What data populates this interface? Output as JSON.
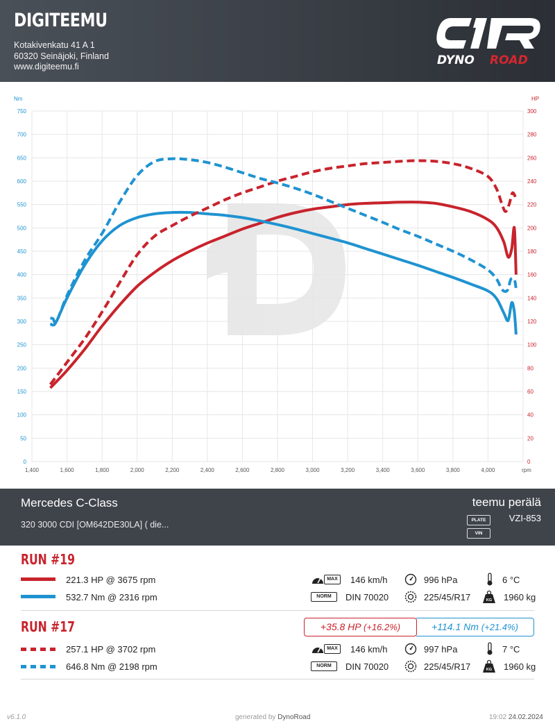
{
  "header": {
    "company": "DIGITEEMU",
    "address_line1": "Kotakivenkatu 41 A 1",
    "address_line2": "60320 Seinäjoki, Finland",
    "website": "www.digiteemu.fi",
    "logo_text_left": "DYNO",
    "logo_text_right": "ROAD"
  },
  "colors": {
    "hp": "#c8232c",
    "nm": "#1f93d1",
    "header_bg": "#3a3f46",
    "car_bar_bg": "#3f444b"
  },
  "chart_data": {
    "type": "line",
    "title": "",
    "xlabel": "rpm",
    "ylabel_left": "Nm",
    "ylabel_right": "HP",
    "xlim": [
      1400,
      4200
    ],
    "ylim_left": [
      0,
      750
    ],
    "ylim_right": [
      0,
      300
    ],
    "x_ticks": [
      1400,
      1600,
      1800,
      2000,
      2200,
      2400,
      2600,
      2800,
      3000,
      3200,
      3400,
      3600,
      3800,
      4000
    ],
    "x_tick_labels": [
      "1,400",
      "1,600",
      "1,800",
      "2,000",
      "2,200",
      "2,400",
      "2,600",
      "2,800",
      "3,000",
      "3,200",
      "3,400",
      "3,600",
      "3,800",
      "4,000"
    ],
    "y_left_ticks": [
      0,
      50,
      100,
      150,
      200,
      250,
      300,
      350,
      400,
      450,
      500,
      550,
      600,
      650,
      700,
      750
    ],
    "y_right_ticks": [
      0,
      20,
      40,
      60,
      80,
      100,
      120,
      140,
      160,
      180,
      200,
      220,
      240,
      260,
      280,
      300
    ],
    "grid": true,
    "series": [
      {
        "name": "RUN #19 HP",
        "axis": "right",
        "color": "#c8232c",
        "dashed": false,
        "x": [
          1505,
          1600,
          1700,
          1800,
          1900,
          2000,
          2100,
          2200,
          2300,
          2400,
          2500,
          2600,
          2700,
          2800,
          2900,
          3000,
          3100,
          3200,
          3300,
          3400,
          3500,
          3600,
          3700,
          3800,
          3900,
          4000,
          4050,
          4090,
          4115,
          4135,
          4150,
          4160
        ],
        "values": [
          63,
          78,
          96,
          116,
          134,
          150,
          162,
          172,
          180,
          187,
          193,
          199,
          204,
          209,
          213,
          216,
          218,
          220,
          221,
          221.5,
          222,
          222,
          221,
          218,
          214,
          207,
          200,
          188,
          175,
          182,
          200,
          160
        ]
      },
      {
        "name": "RUN #19 Nm",
        "axis": "left",
        "color": "#1f93d1",
        "dashed": false,
        "x": [
          1505,
          1520,
          1540,
          1600,
          1700,
          1800,
          1900,
          2000,
          2100,
          2200,
          2300,
          2400,
          2500,
          2600,
          2700,
          2800,
          2900,
          3000,
          3100,
          3200,
          3300,
          3400,
          3500,
          3600,
          3700,
          3800,
          3900,
          4000,
          4050,
          4090,
          4115,
          4135,
          4150,
          4160
        ],
        "values": [
          295,
          292,
          300,
          350,
          420,
          472,
          505,
          522,
          530,
          533,
          533,
          530,
          527,
          522,
          515,
          507,
          498,
          488,
          478,
          468,
          456,
          444,
          432,
          420,
          407,
          394,
          380,
          365,
          348,
          318,
          302,
          340,
          320,
          272
        ]
      },
      {
        "name": "RUN #17 HP",
        "axis": "right",
        "color": "#c8232c",
        "dashed": true,
        "x": [
          1505,
          1600,
          1700,
          1800,
          1900,
          2000,
          2100,
          2200,
          2300,
          2400,
          2500,
          2600,
          2700,
          2800,
          2900,
          3000,
          3100,
          3200,
          3300,
          3400,
          3500,
          3600,
          3700,
          3800,
          3900,
          4000,
          4050,
          4080,
          4100,
          4120,
          4140,
          4160
        ],
        "values": [
          66,
          85,
          105,
          128,
          153,
          177,
          193,
          202,
          210,
          217,
          224,
          230,
          235,
          240,
          244,
          248,
          251,
          253,
          255,
          256,
          257,
          257.5,
          257,
          255,
          251,
          244,
          233,
          220,
          214,
          220,
          230,
          225
        ]
      },
      {
        "name": "RUN #17 Nm",
        "axis": "left",
        "color": "#1f93d1",
        "dashed": true,
        "x": [
          1505,
          1520,
          1540,
          1600,
          1700,
          1800,
          1900,
          2000,
          2100,
          2200,
          2300,
          2400,
          2500,
          2600,
          2700,
          2800,
          2900,
          3000,
          3100,
          3200,
          3300,
          3400,
          3500,
          3600,
          3700,
          3800,
          3900,
          4000,
          4050,
          4080,
          4110,
          4130,
          4150,
          4160
        ],
        "values": [
          307,
          306,
          300,
          355,
          430,
          488,
          555,
          612,
          642,
          648,
          646,
          640,
          630,
          618,
          606,
          596,
          585,
          572,
          557,
          542,
          527,
          512,
          496,
          482,
          466,
          450,
          432,
          410,
          390,
          368,
          366,
          390,
          390,
          370
        ]
      }
    ]
  },
  "car": {
    "model": "Mercedes C-Class",
    "engine": "320 3000 CDI [OM642DE30LA] ( die...",
    "owner": "teemu perälä",
    "plate_tag": "PLATE",
    "plate": "VZI-853",
    "vin_tag": "VIN",
    "vin": ""
  },
  "runs": [
    {
      "title": "RUN #19",
      "hp_text": "221.3 HP @ 3675 rpm",
      "nm_text": "532.7 Nm @ 2316 rpm",
      "max_tag": "MAX",
      "speed": "146 km/h",
      "pressure": "996 hPa",
      "temp": "6 °C",
      "norm_tag": "NORM",
      "norm": "DIN 70020",
      "tyre": "225/45/R17",
      "kg_tag": "KG",
      "weight": "1960 kg"
    },
    {
      "title": "RUN #17",
      "hp_text": "257.1 HP @ 3702 rpm",
      "nm_text": "646.8 Nm @ 2198 rpm",
      "max_tag": "MAX",
      "speed": "146 km/h",
      "pressure": "997 hPa",
      "temp": "7 °C",
      "norm_tag": "NORM",
      "norm": "DIN 70020",
      "tyre": "225/45/R17",
      "kg_tag": "KG",
      "weight": "1960 kg"
    }
  ],
  "delta": {
    "hp": "+35.8 HP",
    "hp_pct": "(+16.2%)",
    "nm": "+114.1 Nm",
    "nm_pct": "(+21.4%)"
  },
  "footer": {
    "version": "v6.1.0",
    "generated_prefix": "generated by",
    "generated_brand": "DynoRoad",
    "time": "19:02",
    "date": "24.02.2024"
  }
}
